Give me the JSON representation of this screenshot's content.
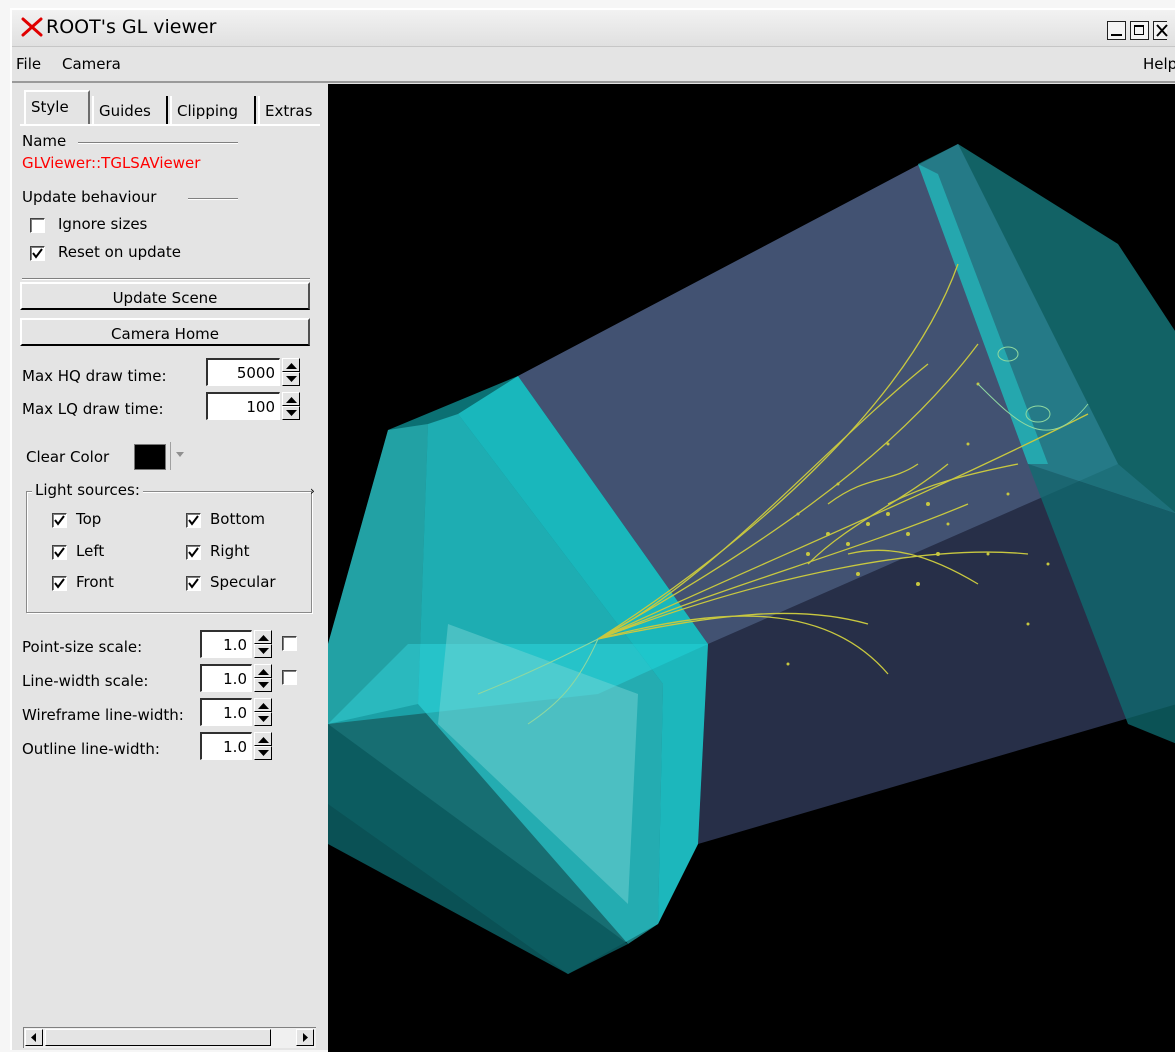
{
  "window": {
    "title": "ROOT's GL viewer"
  },
  "menubar": {
    "file": "File",
    "camera": "Camera",
    "help": "Help"
  },
  "tabs": [
    {
      "label": "Style",
      "active": true
    },
    {
      "label": "Guides",
      "active": false
    },
    {
      "label": "Clipping",
      "active": false
    },
    {
      "label": "Extras",
      "active": false
    }
  ],
  "style": {
    "name_label": "Name",
    "name_value": "GLViewer::TGLSAViewer",
    "update_behaviour_label": "Update behaviour",
    "ignore_sizes": {
      "label": "Ignore sizes",
      "checked": false
    },
    "reset_on_update": {
      "label": "Reset on update",
      "checked": true
    },
    "update_scene_button": "Update Scene",
    "camera_home_button": "Camera Home",
    "max_hq_label": "Max HQ draw time:",
    "max_hq_value": "5000",
    "max_lq_label": "Max LQ draw time:",
    "max_lq_value": "100",
    "clear_color_label": "Clear Color",
    "clear_color": "#000000",
    "light_sources_label": "Light sources:",
    "lights": [
      {
        "label": "Top",
        "checked": true
      },
      {
        "label": "Bottom",
        "checked": true
      },
      {
        "label": "Left",
        "checked": true
      },
      {
        "label": "Right",
        "checked": true
      },
      {
        "label": "Front",
        "checked": true
      },
      {
        "label": "Specular",
        "checked": true
      }
    ],
    "point_size_label": "Point-size scale:",
    "point_size_value": "1.0",
    "line_width_label": "Line-width scale:",
    "line_width_value": "1.0",
    "wireframe_label": "Wireframe line-width:",
    "wireframe_value": "1.0",
    "outline_label": "Outline line-width:",
    "outline_value": "1.0"
  },
  "colors": {
    "name_value": "#ff0000",
    "viewport_background": "#000000",
    "detector_cyan": "#1fd6dc",
    "box_fill": "#4a5a7a",
    "tracks": "#c8c840"
  }
}
